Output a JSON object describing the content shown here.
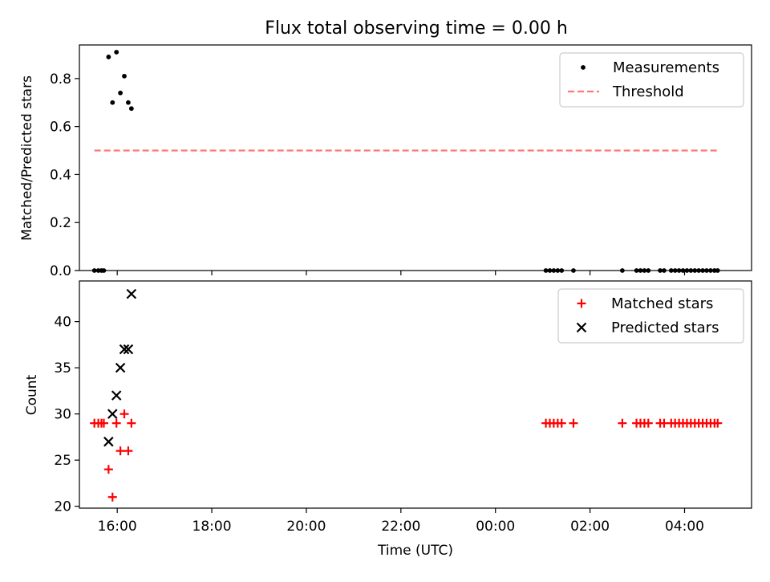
{
  "figure": {
    "title": "Flux total observing time = 0.00 h"
  },
  "chart_data": [
    {
      "type": "scatter",
      "panel": "top",
      "title": "Flux total observing time = 0.00 h",
      "xlabel": "",
      "ylabel": "Matched/Predicted stars",
      "xlim": [
        "15:12",
        "05:25 (+1 day)"
      ],
      "ylim": [
        0,
        0.94
      ],
      "x_tick_labels": [
        "16:00",
        "18:00",
        "20:00",
        "22:00",
        "00:00",
        "02:00",
        "04:00"
      ],
      "y_ticks": [
        0.0,
        0.2,
        0.4,
        0.6,
        0.8
      ],
      "y_tick_labels": [
        "0.0",
        "0.2",
        "0.4",
        "0.6",
        "0.8"
      ],
      "legend": {
        "position": "top-right",
        "entries": [
          "Measurements",
          "Threshold"
        ]
      },
      "series": [
        {
          "name": "Measurements",
          "color": "#000000",
          "marker": "dot",
          "points": [
            [
              "15:31",
              0.0
            ],
            [
              "15:36",
              0.0
            ],
            [
              "15:40",
              0.0
            ],
            [
              "15:43",
              0.0
            ],
            [
              "15:49",
              0.89
            ],
            [
              "15:54",
              0.7
            ],
            [
              "15:59",
              0.91
            ],
            [
              "16:04",
              0.74
            ],
            [
              "16:09",
              0.81
            ],
            [
              "16:14",
              0.7
            ],
            [
              "16:18",
              0.675
            ],
            [
              "01:04",
              0.0
            ],
            [
              "01:09",
              0.0
            ],
            [
              "01:14",
              0.0
            ],
            [
              "01:19",
              0.0
            ],
            [
              "01:24",
              0.0
            ],
            [
              "01:39",
              0.0
            ],
            [
              "02:41",
              0.0
            ],
            [
              "02:59",
              0.0
            ],
            [
              "03:04",
              0.0
            ],
            [
              "03:09",
              0.0
            ],
            [
              "03:14",
              0.0
            ],
            [
              "03:29",
              0.0
            ],
            [
              "03:34",
              0.0
            ],
            [
              "03:43",
              0.0
            ],
            [
              "03:48",
              0.0
            ],
            [
              "03:53",
              0.0
            ],
            [
              "03:58",
              0.0
            ],
            [
              "04:03",
              0.0
            ],
            [
              "04:08",
              0.0
            ],
            [
              "04:13",
              0.0
            ],
            [
              "04:18",
              0.0
            ],
            [
              "04:23",
              0.0
            ],
            [
              "04:28",
              0.0
            ],
            [
              "04:33",
              0.0
            ],
            [
              "04:38",
              0.0
            ],
            [
              "04:42",
              0.0
            ]
          ]
        },
        {
          "name": "Threshold",
          "color": "#ff7777",
          "style": "dashed",
          "points": [
            [
              "15:31",
              0.5
            ],
            [
              "04:42",
              0.5
            ]
          ]
        }
      ]
    },
    {
      "type": "scatter",
      "panel": "bottom",
      "xlabel": "Time (UTC)",
      "ylabel": "Count",
      "xlim": [
        "15:12",
        "05:25 (+1 day)"
      ],
      "ylim": [
        19.8,
        44.4
      ],
      "x_tick_labels": [
        "16:00",
        "18:00",
        "20:00",
        "22:00",
        "00:00",
        "02:00",
        "04:00"
      ],
      "y_ticks": [
        20,
        25,
        30,
        35,
        40
      ],
      "y_tick_labels": [
        "20",
        "25",
        "30",
        "35",
        "40"
      ],
      "legend": {
        "position": "top-right",
        "entries": [
          "Matched stars",
          "Predicted stars"
        ]
      },
      "series": [
        {
          "name": "Matched stars",
          "color": "#ff0000",
          "marker": "plus",
          "points": [
            [
              "15:31",
              29
            ],
            [
              "15:36",
              29
            ],
            [
              "15:40",
              29
            ],
            [
              "15:43",
              29
            ],
            [
              "15:49",
              24
            ],
            [
              "15:54",
              21
            ],
            [
              "15:59",
              29
            ],
            [
              "16:04",
              26
            ],
            [
              "16:09",
              30
            ],
            [
              "16:14",
              26
            ],
            [
              "16:18",
              29
            ],
            [
              "01:04",
              29
            ],
            [
              "01:09",
              29
            ],
            [
              "01:14",
              29
            ],
            [
              "01:19",
              29
            ],
            [
              "01:24",
              29
            ],
            [
              "01:39",
              29
            ],
            [
              "02:41",
              29
            ],
            [
              "02:59",
              29
            ],
            [
              "03:04",
              29
            ],
            [
              "03:09",
              29
            ],
            [
              "03:14",
              29
            ],
            [
              "03:29",
              29
            ],
            [
              "03:34",
              29
            ],
            [
              "03:43",
              29
            ],
            [
              "03:48",
              29
            ],
            [
              "03:53",
              29
            ],
            [
              "03:58",
              29
            ],
            [
              "04:03",
              29
            ],
            [
              "04:08",
              29
            ],
            [
              "04:13",
              29
            ],
            [
              "04:18",
              29
            ],
            [
              "04:23",
              29
            ],
            [
              "04:28",
              29
            ],
            [
              "04:33",
              29
            ],
            [
              "04:38",
              29
            ],
            [
              "04:42",
              29
            ]
          ]
        },
        {
          "name": "Predicted stars",
          "color": "#000000",
          "marker": "x",
          "points": [
            [
              "15:49",
              27
            ],
            [
              "15:54",
              30
            ],
            [
              "15:59",
              32
            ],
            [
              "16:04",
              35
            ],
            [
              "16:09",
              37
            ],
            [
              "16:14",
              37
            ],
            [
              "16:18",
              43
            ]
          ]
        }
      ]
    }
  ]
}
